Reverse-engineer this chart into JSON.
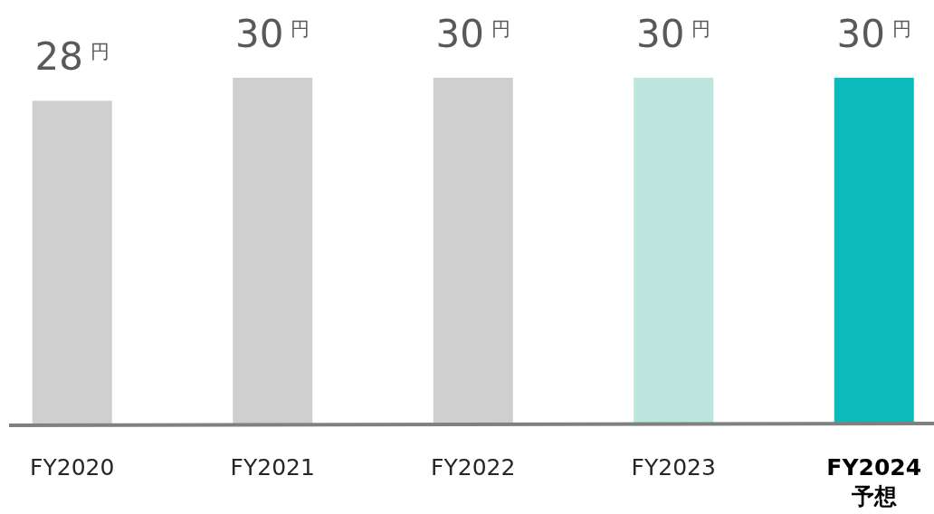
{
  "chart_data": {
    "type": "bar",
    "categories": [
      "FY2020",
      "FY2021",
      "FY2022",
      "FY2023",
      "**FY2024 予想**"
    ],
    "values": [
      28,
      30,
      30,
      30,
      30
    ],
    "colors": [
      "#d0cfd0",
      "#d0cfd0",
      "#d0cfd0",
      "#bce5dd",
      "#0bbbbb"
    ],
    "value_labels": [
      "28$^{円}$",
      "30$^{円}$",
      "30$^{円}$",
      "30$^{円}$",
      "30$^{円}$"
    ]
  }
}
